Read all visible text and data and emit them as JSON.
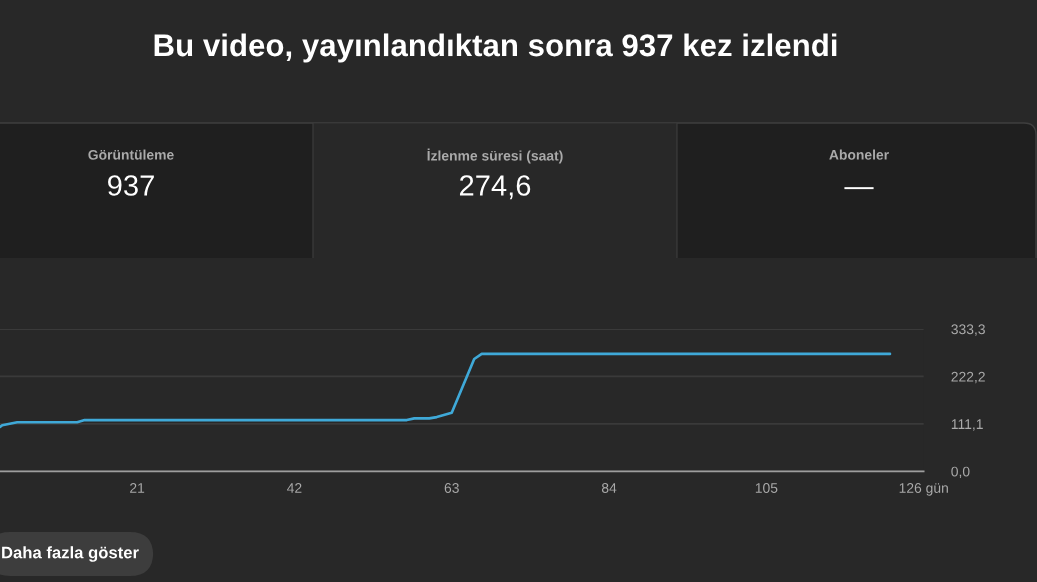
{
  "chart_data": [
    {
      "type": "other",
      "title": "Bu video, yayınlandıktan sonra 937 kez izlendi",
      "annotations": [
        "Görüntüleme",
        "937",
        "İzlenme süresi (saat)",
        "274,6",
        "Aboneler",
        "—"
      ]
    },
    {
      "type": "line",
      "x": [
        2.7,
        3,
        5,
        13,
        14,
        57,
        58,
        60,
        61,
        63,
        66,
        67,
        121.5
      ],
      "series": [
        {
          "color": "#3fa9d8",
          "values": [
            104,
            108,
            115,
            115,
            120,
            120,
            124,
            124,
            127,
            137,
            263,
            275,
            275
          ]
        }
      ],
      "xlim": [
        2.7,
        126
      ],
      "xticks": [
        21,
        42,
        63,
        84,
        105,
        {
          "value": 126,
          "label": "126 gün"
        }
      ],
      "ylim": [
        0,
        333.3
      ],
      "yticks": [
        {
          "value": 0,
          "label": "0,0"
        },
        {
          "value": 111.1,
          "label": "111,1"
        },
        {
          "value": 222.2,
          "label": "222,2"
        },
        {
          "value": 333.3,
          "label": "333,3"
        }
      ],
      "grid": "y",
      "annotations": [
        "Daha fazla göster"
      ]
    }
  ]
}
